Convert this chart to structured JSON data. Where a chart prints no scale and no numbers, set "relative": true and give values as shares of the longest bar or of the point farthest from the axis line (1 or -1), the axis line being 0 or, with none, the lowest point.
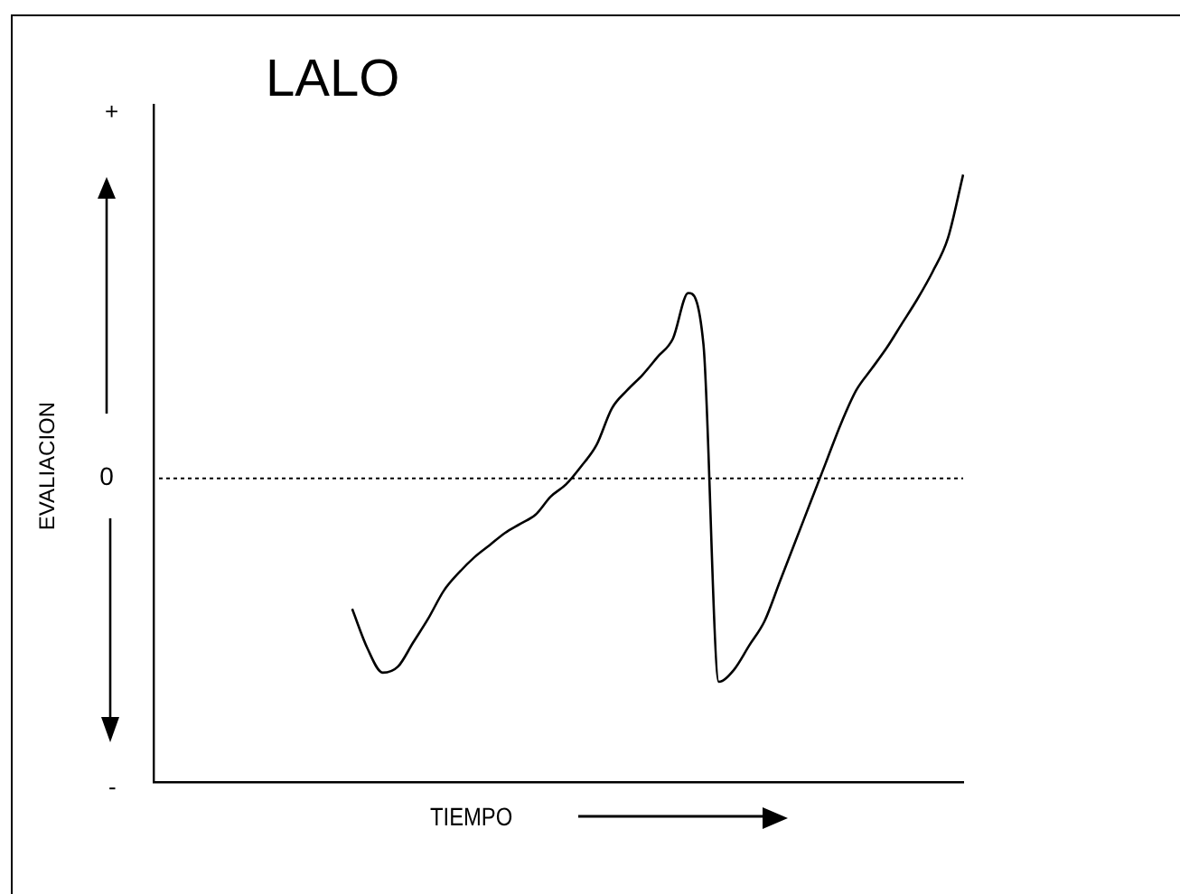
{
  "chart_data": {
    "type": "line",
    "title": "LALO",
    "xlabel": "TIEMPO",
    "ylabel": "EVALIACION",
    "relative": true,
    "categories": [
      null,
      null,
      null,
      null,
      null,
      null,
      null,
      null,
      null,
      null,
      null,
      null,
      null,
      null,
      null,
      null,
      null,
      null,
      null,
      null,
      null,
      null,
      null,
      null,
      null,
      null,
      null,
      null,
      null,
      null,
      null,
      null,
      null,
      null,
      null,
      null,
      null,
      null,
      null,
      null,
      null,
      null,
      null,
      null,
      null,
      null,
      null,
      null,
      null,
      null,
      null,
      null,
      null,
      null
    ],
    "series": [
      {
        "color": "#000000",
        "values": [
          null,
          null,
          null,
          null,
          null,
          null,
          null,
          null,
          null,
          null,
          null,
          null,
          null,
          -0.43,
          -0.56,
          -0.64,
          -0.62,
          -0.54,
          -0.46,
          -0.37,
          -0.31,
          -0.26,
          -0.22,
          -0.18,
          -0.15,
          -0.12,
          -0.06,
          -0.02,
          0.04,
          0.11,
          0.23,
          0.29,
          0.34,
          0.4,
          0.46,
          0.61,
          0.44,
          -0.67,
          -0.63,
          -0.55,
          -0.47,
          -0.34,
          -0.21,
          -0.08,
          0.05,
          0.18,
          0.29,
          0.36,
          0.43,
          0.51,
          0.59,
          0.68,
          0.79,
          1
        ]
      }
    ],
    "ref_lines": [
      {
        "axis": "y",
        "value": 0,
        "label": "0",
        "line_style": "dotted"
      }
    ],
    "annotations": [
      "+",
      "-"
    ],
    "grid": false,
    "legend": false,
    "marker": "none",
    "tick_labels": false
  }
}
